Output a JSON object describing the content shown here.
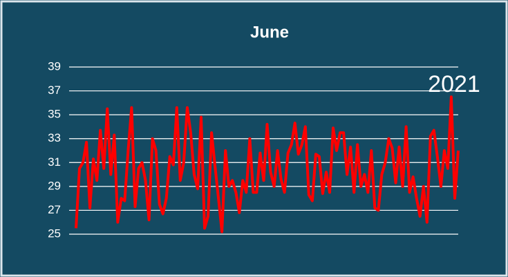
{
  "chart_data": {
    "type": "line",
    "title": "June",
    "annotations": [
      {
        "text": "2021"
      }
    ],
    "series": [
      {
        "color": "#ff0000",
        "values": [
          25.5,
          30.5,
          31,
          32.7,
          27.2,
          31.3,
          29.5,
          33.7,
          30.5,
          35.5,
          30,
          33.3,
          26,
          28,
          27.8,
          32,
          35.6,
          27.3,
          30.5,
          31,
          29.5,
          26.2,
          33,
          32,
          27.5,
          26.7,
          28,
          31.5,
          30.8,
          35.6,
          29.5,
          31,
          35.6,
          33.5,
          30,
          28.8,
          34.8,
          25.5,
          26.5,
          33.5,
          30.7,
          28,
          25.2,
          32,
          29,
          29.5,
          28.5,
          26.8,
          29.5,
          28.5,
          33,
          28.5,
          28.5,
          31.8,
          29.5,
          34.2,
          30.2,
          29,
          32,
          29.6,
          28.5,
          31.8,
          32.5,
          34.3,
          31.7,
          32.5,
          34,
          28.3,
          27.8,
          31.7,
          31.5,
          28.4,
          30.2,
          28.5,
          33.9,
          32,
          33.5,
          33.5,
          30,
          32.3,
          28.5,
          32.5,
          29,
          30,
          28.5,
          32,
          27.2,
          27,
          30,
          31,
          33,
          32.2,
          29.3,
          32.3,
          29,
          34,
          28.5,
          29.8,
          28,
          26.5,
          29,
          26,
          33.2,
          33.7,
          31.5,
          29,
          32,
          30.5,
          36.5,
          28,
          32
        ]
      }
    ],
    "ylim": [
      25,
      39
    ],
    "yticks": [
      25,
      27,
      29,
      31,
      33,
      35,
      37,
      39
    ],
    "grid": true
  }
}
